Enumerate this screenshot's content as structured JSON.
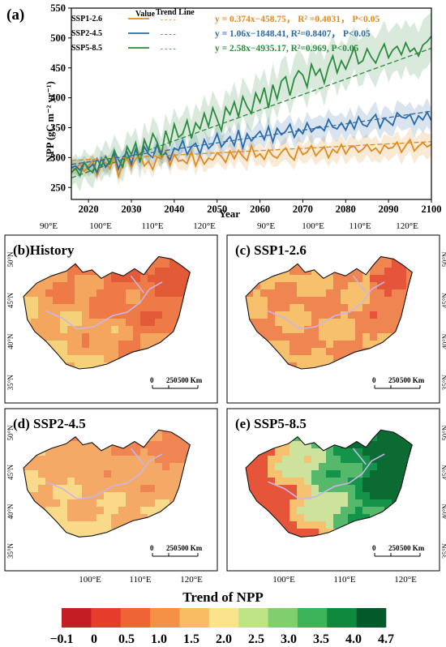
{
  "panel_a": {
    "label": "(a)",
    "ylabel": "NPP (gC m⁻² yr⁻¹)",
    "xlabel": "Year",
    "legend": {
      "value_header": "Value",
      "trend_header": "Trend Line",
      "dash_symbol": "- - - -",
      "equations": [
        "y = 0.374x−458.75， R² =0.4031， P<0.05",
        "y = 1.06x−1848.41, R²=0.8407， P<0.05",
        "y = 2.58x−4935.17, R²=0.969, P<0.05"
      ]
    }
  },
  "chart_data": {
    "type": "line",
    "xlim": [
      2016,
      2100
    ],
    "ylim": [
      230,
      550
    ],
    "x_ticks": [
      2020,
      2030,
      2040,
      2050,
      2060,
      2070,
      2080,
      2090,
      2100
    ],
    "y_ticks": [
      250,
      300,
      350,
      400,
      450,
      500,
      550
    ],
    "x": [
      2016,
      2017,
      2018,
      2019,
      2020,
      2021,
      2022,
      2023,
      2024,
      2025,
      2026,
      2027,
      2028,
      2029,
      2030,
      2031,
      2032,
      2033,
      2034,
      2035,
      2036,
      2037,
      2038,
      2039,
      2040,
      2041,
      2042,
      2043,
      2044,
      2045,
      2046,
      2047,
      2048,
      2049,
      2050,
      2051,
      2052,
      2053,
      2054,
      2055,
      2056,
      2057,
      2058,
      2059,
      2060,
      2061,
      2062,
      2063,
      2064,
      2065,
      2066,
      2067,
      2068,
      2069,
      2070,
      2071,
      2072,
      2073,
      2074,
      2075,
      2076,
      2077,
      2078,
      2079,
      2080,
      2081,
      2082,
      2083,
      2084,
      2085,
      2086,
      2087,
      2088,
      2089,
      2090,
      2091,
      2092,
      2093,
      2094,
      2095,
      2096,
      2097,
      2098,
      2099,
      2100
    ],
    "series": [
      {
        "name": "SSP1-2.6",
        "color": "#e08a1e",
        "trend": [
          0.374,
          -458.75
        ],
        "band": 18,
        "values": [
          283,
          280,
          290,
          277,
          286,
          295,
          270,
          288,
          292,
          281,
          302,
          268,
          290,
          299,
          284,
          297,
          307,
          286,
          294,
          280,
          301,
          298,
          311,
          287,
          305,
          294,
          296,
          290,
          310,
          286,
          304,
          289,
          299,
          296,
          308,
          302,
          292,
          311,
          298,
          312,
          302,
          295,
          320,
          301,
          306,
          297,
          313,
          303,
          299,
          309,
          316,
          303,
          296,
          318,
          305,
          309,
          320,
          303,
          311,
          318,
          300,
          314,
          308,
          322,
          306,
          317,
          319,
          309,
          314,
          322,
          311,
          316,
          307,
          321,
          315,
          317,
          326,
          309,
          320,
          330,
          311,
          319,
          325,
          318,
          322
        ]
      },
      {
        "name": "SSP2-4.5",
        "color": "#2a6aa8",
        "trend": [
          1.06,
          -1848.41
        ],
        "band": 20,
        "values": [
          283,
          286,
          279,
          292,
          282,
          289,
          275,
          299,
          284,
          294,
          306,
          281,
          300,
          309,
          289,
          314,
          294,
          318,
          306,
          300,
          322,
          302,
          308,
          296,
          316,
          312,
          329,
          305,
          318,
          324,
          306,
          330,
          315,
          322,
          340,
          318,
          327,
          335,
          320,
          346,
          316,
          340,
          328,
          336,
          344,
          330,
          352,
          326,
          349,
          338,
          344,
          356,
          334,
          348,
          340,
          358,
          343,
          350,
          352,
          345,
          364,
          351,
          348,
          358,
          346,
          362,
          348,
          368,
          355,
          352,
          364,
          372,
          350,
          366,
          360,
          354,
          375,
          368,
          366,
          372,
          356,
          370,
          363,
          376,
          362
        ]
      },
      {
        "name": "SSP5-8.5",
        "color": "#2d8a3e",
        "trend": [
          2.58,
          -4935.17
        ],
        "band": 40,
        "values": [
          275,
          282,
          270,
          292,
          280,
          275,
          298,
          285,
          302,
          290,
          312,
          296,
          284,
          318,
          305,
          325,
          292,
          330,
          312,
          340,
          326,
          305,
          345,
          322,
          356,
          334,
          340,
          362,
          332,
          358,
          348,
          374,
          352,
          383,
          364,
          345,
          384,
          372,
          393,
          368,
          402,
          385,
          374,
          408,
          392,
          417,
          383,
          422,
          398,
          428,
          435,
          404,
          432,
          445,
          438,
          418,
          456,
          438,
          448,
          425,
          452,
          470,
          442,
          462,
          448,
          466,
          484,
          457,
          462,
          482,
          468,
          458,
          476,
          490,
          467,
          480,
          486,
          472,
          492,
          477,
          483,
          470,
          488,
          494,
          503
        ]
      }
    ]
  },
  "maps": {
    "top_lon_ticks": [
      "90°E",
      "100°E",
      "110°E",
      "120°E"
    ],
    "bottom_lon_ticks": [
      "100°E",
      "110°E",
      "120°E"
    ],
    "lat_ticks": [
      "50°N",
      "45°N",
      "40°N",
      "35°N"
    ],
    "scale_labels": [
      "0",
      "250",
      "500 Km"
    ],
    "panels": [
      {
        "title": "(b)History",
        "palette": [
          "#f5d27a",
          "#f4a65e",
          "#ee7a48",
          "#e35a38"
        ],
        "mode": "history"
      },
      {
        "title": "(c) SSP1-2.6",
        "palette": [
          "#f6c06c",
          "#ef8651",
          "#e6553a",
          "#c93a2a"
        ],
        "mode": "ssp126"
      },
      {
        "title": "(d) SSP2-4.5",
        "palette": [
          "#f9d98a",
          "#f4a966",
          "#ef8553",
          "#e2613d"
        ],
        "mode": "ssp245"
      },
      {
        "title": "(e) SSP5-8.5",
        "palette": [
          "#e6553a",
          "#f7c26f",
          "#cde29a",
          "#55b86b",
          "#14934a",
          "#0b6b33"
        ],
        "mode": "ssp585"
      }
    ]
  },
  "colorbar": {
    "title": "Trend of NPP",
    "labels": [
      "−0.1",
      "0",
      "0.5",
      "1.0",
      "1.5",
      "2.0",
      "2.5",
      "3.0",
      "3.5",
      "4.0",
      "4.7"
    ],
    "colors": [
      "#c41e24",
      "#e53d2c",
      "#ef6437",
      "#f59047",
      "#f8bd62",
      "#fbe38d",
      "#bfe387",
      "#7fcf6f",
      "#3cb45a",
      "#0f8a3d",
      "#04592a"
    ]
  }
}
